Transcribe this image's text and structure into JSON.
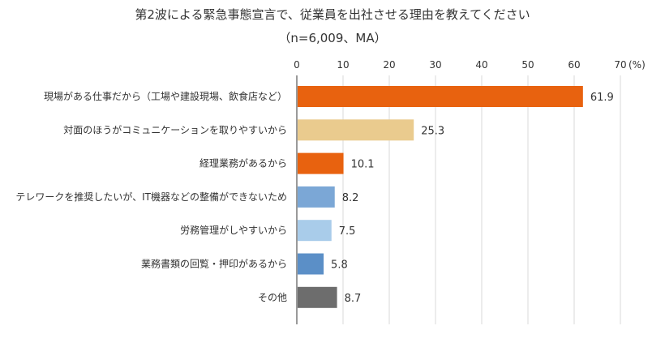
{
  "chart_data": {
    "type": "bar",
    "orientation": "horizontal",
    "title": "第2波による緊急事態宣言で、従業員を出社させる理由を教えてください",
    "subtitle": "（n=6,009、MA）",
    "unit_label": "(%)",
    "xlim": [
      0,
      70
    ],
    "ticks": [
      "0",
      "10",
      "20",
      "30",
      "40",
      "50",
      "60",
      "70"
    ],
    "grid": "vertical",
    "legend": "none",
    "categories": [
      "現場がある仕事だから（工場や建設現場、飲食店など）",
      "対面のほうがコミュニケーションを取りやすいから",
      "経理業務があるから",
      "テレワークを推奨したいが、IT機器などの整備ができないため",
      "労務管理がしやすいから",
      "業務書類の回覧・押印があるから",
      "その他"
    ],
    "values": [
      61.9,
      25.3,
      10.1,
      8.2,
      7.5,
      5.8,
      8.7
    ],
    "value_labels": [
      "61.9",
      "25.3",
      "10.1",
      "8.2",
      "7.5",
      "5.8",
      "8.7"
    ],
    "colors": [
      "#E8620F",
      "#EACB8E",
      "#E8620F",
      "#7BA7D6",
      "#A9CCEA",
      "#5B8FC7",
      "#6D6D6D"
    ],
    "axis_color": "#9A9A9A",
    "grid_color": "#D9D9D9"
  }
}
